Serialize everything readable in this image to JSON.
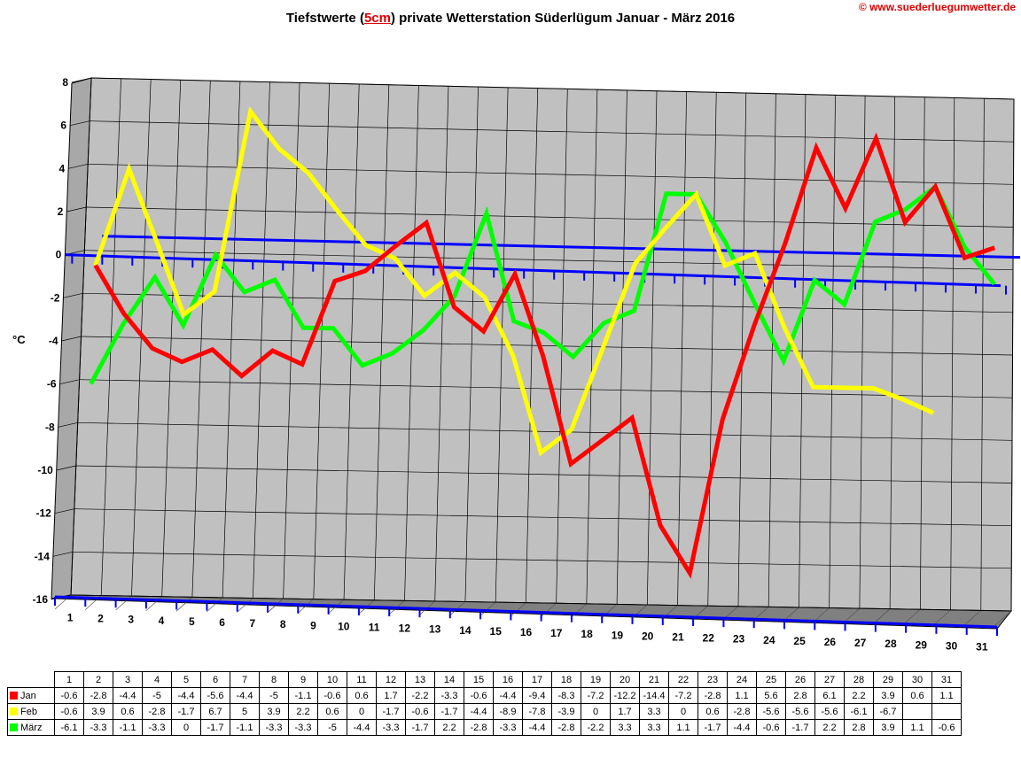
{
  "title": {
    "prefix": "Tiefstwerte (",
    "highlight": "5cm",
    "suffix": ") private Wetterstation Süderlügum Januar - März 2016"
  },
  "source": "© www.suederluegumwetter.de",
  "chart_data": {
    "type": "line",
    "title": "Tiefstwerte (5cm) private Wetterstation Süderlügum Januar - März 2016",
    "ylabel": "°C",
    "xlabel": "",
    "ylim": [
      -16,
      8
    ],
    "yticks": [
      8,
      6,
      4,
      2,
      0,
      -2,
      -4,
      -6,
      -8,
      -10,
      -12,
      -14,
      -16
    ],
    "grid": true,
    "categories": [
      "1",
      "2",
      "3",
      "4",
      "5",
      "6",
      "7",
      "8",
      "9",
      "10",
      "11",
      "12",
      "13",
      "14",
      "15",
      "16",
      "17",
      "18",
      "19",
      "20",
      "21",
      "22",
      "23",
      "24",
      "25",
      "26",
      "27",
      "28",
      "29",
      "30",
      "31"
    ],
    "series": [
      {
        "name": "Jan",
        "color": "#ff0000",
        "values": [
          -0.6,
          -2.8,
          -4.4,
          -5,
          -4.4,
          -5.6,
          -4.4,
          -5,
          -1.1,
          -0.6,
          0.6,
          1.7,
          -2.2,
          -3.3,
          -0.6,
          -4.4,
          -9.4,
          -8.3,
          -7.2,
          -12.2,
          -14.4,
          -7.2,
          -2.8,
          1.1,
          5.6,
          2.8,
          6.1,
          2.2,
          3.9,
          0.6,
          1.1
        ],
        "display": [
          "-0.6",
          "-2.8",
          "-4.4",
          "-5",
          "-4.4",
          "-5.6",
          "-4.4",
          "-5",
          "-1.1",
          "-0.6",
          "0.6",
          "1.7",
          "-2.2",
          "-3.3",
          "-0.6",
          "-4.4",
          "-9.4",
          "-8.3",
          "-7.2",
          "-12.2",
          "-14.4",
          "-7.2",
          "-2.8",
          "1.1",
          "5.6",
          "2.8",
          "6.1",
          "2.2",
          "3.9",
          "0.6",
          "1.1"
        ]
      },
      {
        "name": "Feb",
        "color": "#ffff00",
        "values": [
          -0.6,
          3.9,
          0.6,
          -2.8,
          -1.7,
          6.7,
          5,
          3.9,
          2.2,
          0.6,
          0,
          -1.7,
          -0.6,
          -1.7,
          -4.4,
          -8.9,
          -7.8,
          -3.9,
          0,
          1.7,
          3.3,
          0,
          0.6,
          -2.8,
          -5.6,
          -5.6,
          -5.6,
          -6.1,
          -6.7,
          null,
          null
        ],
        "display": [
          "-0.6",
          "3.9",
          "0.6",
          "-2.8",
          "-1.7",
          "6.7",
          "5",
          "3.9",
          "2.2",
          "0.6",
          "0",
          "-1.7",
          "-0.6",
          "-1.7",
          "-4.4",
          "-8.9",
          "-7.8",
          "-3.9",
          "0",
          "1.7",
          "3.3",
          "0",
          "0.6",
          "-2.8",
          "-5.6",
          "-5.6",
          "-5.6",
          "-6.1",
          "-6.7",
          "",
          ""
        ]
      },
      {
        "name": "März",
        "color": "#00ff00",
        "values": [
          -6.1,
          -3.3,
          -1.1,
          -3.3,
          0,
          -1.7,
          -1.1,
          -3.3,
          -3.3,
          -5,
          -4.4,
          -3.3,
          -1.7,
          2.2,
          -2.8,
          -3.3,
          -4.4,
          -2.8,
          -2.2,
          3.3,
          3.3,
          1.1,
          -1.7,
          -4.4,
          -0.6,
          -1.7,
          2.2,
          2.8,
          3.9,
          1.1,
          -0.6
        ],
        "display": [
          "-6.1",
          "-3.3",
          "-1.1",
          "-3.3",
          "0",
          "-1.7",
          "-1.1",
          "-3.3",
          "-3.3",
          "-5",
          "-4.4",
          "-3.3",
          "-1.7",
          "2.2",
          "-2.8",
          "-3.3",
          "-4.4",
          "-2.8",
          "-2.2",
          "3.3",
          "3.3",
          "1.1",
          "-1.7",
          "-4.4",
          "-0.6",
          "-1.7",
          "2.2",
          "2.8",
          "3.9",
          "1.1",
          "-0.6"
        ]
      }
    ]
  },
  "colors": {
    "plot_background": "#c0c0c0",
    "plot_floor": "#808080",
    "zero_plane": "#0000ff",
    "grid": "#000000"
  }
}
